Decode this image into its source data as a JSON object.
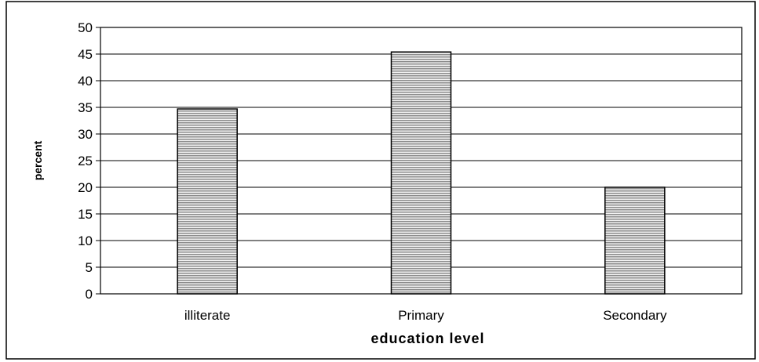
{
  "chart_data": {
    "type": "bar",
    "categories": [
      "illiterate",
      "Primary",
      "Secondary"
    ],
    "values": [
      34.7,
      45.4,
      20.0
    ],
    "xlabel": "education level",
    "ylabel": "percent",
    "ylim": [
      0,
      50
    ],
    "yticks": [
      0,
      5,
      10,
      15,
      20,
      25,
      30,
      35,
      40,
      45,
      50
    ],
    "grid": true,
    "legend": "none"
  },
  "colors": {
    "bar_fill": "#8c8c8c",
    "bar_stripe": "#f2f2f2",
    "grid": "#000000",
    "frame": "#000000"
  }
}
